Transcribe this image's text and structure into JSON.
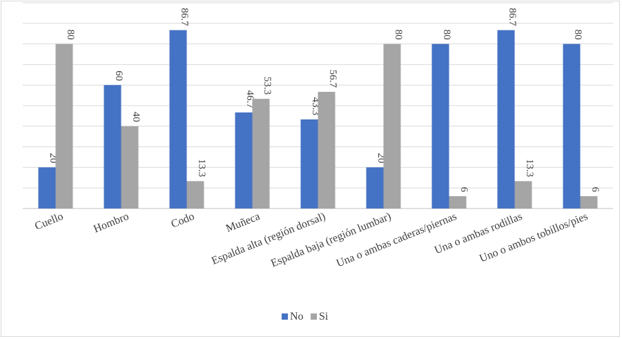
{
  "chart_data": {
    "type": "bar",
    "categories": [
      "Cuello",
      "Hombro",
      "Codo",
      "Muñeca",
      "Espalda alta (región dorsal)",
      "Espalda baja (región lumbar)",
      "Una o ambas caderas/piernas",
      "Una o ambas rodillas",
      "Uno o ambos tobillos/pies"
    ],
    "series": [
      {
        "name": "No",
        "color": "#4472c4",
        "values": [
          20,
          60,
          86.7,
          46.7,
          43.3,
          20,
          80,
          86.7,
          80
        ]
      },
      {
        "name": "Si",
        "color": "#a5a5a5",
        "values": [
          80,
          40,
          13.3,
          53.3,
          56.7,
          80,
          6,
          13.3,
          6
        ]
      }
    ],
    "ylim": [
      0,
      100
    ],
    "grid": true,
    "legend": "bottom",
    "title": "",
    "xlabel": "",
    "ylabel": ""
  }
}
